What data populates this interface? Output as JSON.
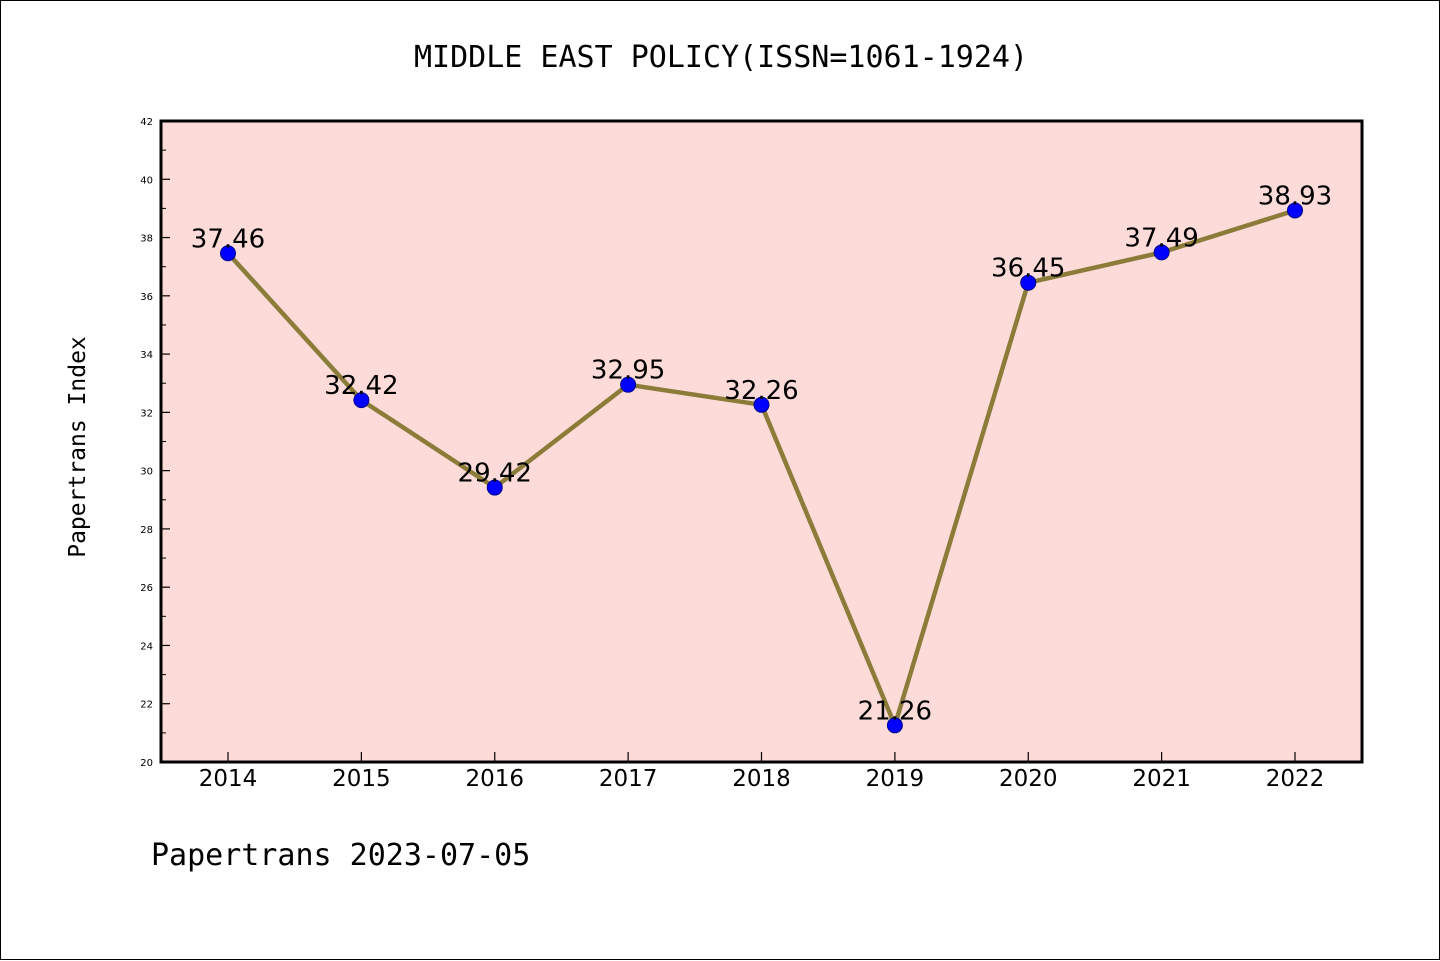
{
  "chart_data": {
    "type": "line",
    "title": "MIDDLE EAST POLICY(ISSN=1061-1924)",
    "xlabel": "",
    "ylabel": "Papertrans Index",
    "footer": "Papertrans 2023-07-05",
    "categories": [
      "2014",
      "2015",
      "2016",
      "2017",
      "2018",
      "2019",
      "2020",
      "2021",
      "2022"
    ],
    "series": [
      {
        "values": [
          37.46,
          32.42,
          29.42,
          32.95,
          32.26,
          21.26,
          36.45,
          37.49,
          38.93
        ]
      }
    ],
    "data_labels": [
      "37.46",
      "32.42",
      "29.42",
      "32.95",
      "32.26",
      "21.26",
      "36.45",
      "37.49",
      "38.93"
    ],
    "ylim": [
      20,
      42
    ],
    "yticks": [
      "20",
      "22",
      "24",
      "26",
      "28",
      "30",
      "32",
      "34",
      "36",
      "38",
      "40",
      "42"
    ],
    "grid": false,
    "legend": "none",
    "colors": {
      "plot_background": "#fddbd8",
      "line": "#8b7c3a",
      "marker": "#0000ff",
      "marker_edge": "#00008b",
      "axes": "#000000"
    }
  }
}
